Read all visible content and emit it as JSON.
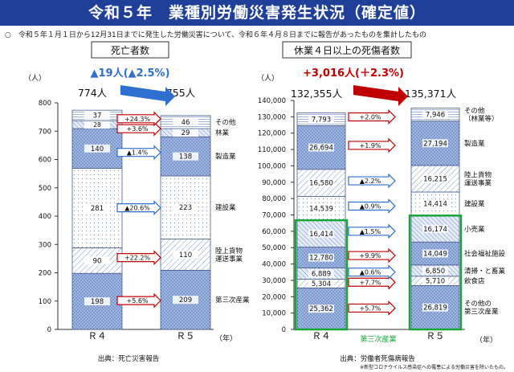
{
  "header": {
    "title": "令和５年　業種別労働災害発生状況（確定値）",
    "note": "○　令和５年１月１日から12月31日までに発生した労働災害について、令和６年４月８日までに報告があったものを集計したもの"
  },
  "colors": {
    "banner": "#1f3f99",
    "segment_pattern": "#6f8fc9",
    "arrow_blue": "#2f6fcf",
    "arrow_red": "#c00000",
    "tertiary_box": "#1aa53a"
  },
  "chart_data": [
    {
      "type": "bar",
      "stacked": true,
      "title": "死亡者数",
      "ylabel": "（人）",
      "xlabel": "（年）",
      "categories": [
        "Ｒ４",
        "Ｒ５"
      ],
      "ylim": [
        0,
        800
      ],
      "yticks": [
        0,
        100,
        200,
        300,
        400,
        500,
        600,
        700,
        800
      ],
      "grid": false,
      "totals": [
        "774人",
        "755人"
      ],
      "total_change": "▲19人(▲2.5%)",
      "series": [
        {
          "name": "第三次産業",
          "values": [
            198,
            209
          ],
          "labels": [
            "198",
            "209"
          ],
          "change": "+5.6%",
          "direction": "up"
        },
        {
          "name": "陸上貨物運送事業",
          "values": [
            90,
            110
          ],
          "labels": [
            "90",
            "110"
          ],
          "change": "+22.2%",
          "direction": "up"
        },
        {
          "name": "建設業",
          "values": [
            281,
            223
          ],
          "labels": [
            "281",
            "223"
          ],
          "change": "▲20.6%",
          "direction": "down"
        },
        {
          "name": "製造業",
          "values": [
            140,
            138
          ],
          "labels": [
            "140",
            "138"
          ],
          "change": "▲1.4%",
          "direction": "down"
        },
        {
          "name": "林業",
          "values": [
            28,
            29
          ],
          "labels": [
            "28",
            "29"
          ],
          "change": "+3.6%",
          "direction": "up"
        },
        {
          "name": "その他",
          "values": [
            37,
            46
          ],
          "labels": [
            "37",
            "46"
          ],
          "change": "+24.3%",
          "direction": "up"
        }
      ],
      "source": "出典：死亡災害報告"
    },
    {
      "type": "bar",
      "stacked": true,
      "title": "休業４日以上の死傷者数",
      "ylabel": "（人）",
      "xlabel": "（年）",
      "categories": [
        "Ｒ４",
        "Ｒ５"
      ],
      "ylim": [
        0,
        140000
      ],
      "yticks": [
        0,
        10000,
        20000,
        30000,
        40000,
        50000,
        60000,
        70000,
        80000,
        90000,
        100000,
        110000,
        120000,
        130000,
        140000
      ],
      "ytick_labels": [
        "0",
        "10,000",
        "20,000",
        "30,000",
        "40,000",
        "50,000",
        "60,000",
        "70,000",
        "80,000",
        "90,000",
        "100,000",
        "110,000",
        "120,000",
        "130,000",
        "140,000"
      ],
      "grid": false,
      "totals": [
        "132,355人",
        "135,371人"
      ],
      "total_change": "+3,016人(＋2.3%)",
      "series": [
        {
          "name": "その他の第三次産業",
          "values": [
            25362,
            26819
          ],
          "labels": [
            "25,362",
            "26,819"
          ],
          "change": "+5.7%",
          "direction": "up"
        },
        {
          "name": "飲食店",
          "values": [
            5304,
            5710
          ],
          "labels": [
            "5,304",
            "5,710"
          ],
          "change": "+7.7%",
          "direction": "up"
        },
        {
          "name": "清掃・と畜業",
          "values": [
            6889,
            6850
          ],
          "labels": [
            "6,889",
            "6,850"
          ],
          "change": "▲0.6%",
          "direction": "down"
        },
        {
          "name": "社会福祉施設",
          "values": [
            12780,
            14049
          ],
          "labels": [
            "12,780",
            "14,049"
          ],
          "change": "+9.9%",
          "direction": "up"
        },
        {
          "name": "小売業",
          "values": [
            16414,
            16174
          ],
          "labels": [
            "16,414",
            "16,174"
          ],
          "change": "▲1.5%",
          "direction": "down"
        },
        {
          "name": "建設業",
          "values": [
            14539,
            14414
          ],
          "labels": [
            "14,539",
            "14,414"
          ],
          "change": "▲0.9%",
          "direction": "down"
        },
        {
          "name": "陸上貨物運送事業",
          "values": [
            16580,
            16215
          ],
          "labels": [
            "16,580",
            "16,215"
          ],
          "change": "▲2.2%",
          "direction": "down"
        },
        {
          "name": "製造業",
          "values": [
            26694,
            27194
          ],
          "labels": [
            "26,694",
            "27,194"
          ],
          "change": "+1.9%",
          "direction": "up"
        },
        {
          "name": "その他（林業等）",
          "values": [
            7793,
            7946
          ],
          "labels": [
            "7,793",
            "7,946"
          ],
          "change": "+2.0%",
          "direction": "up"
        }
      ],
      "group_box": {
        "label": "第三次産業",
        "from_series": 0,
        "to_series": 4
      },
      "source": "出典：労働者死傷病報告",
      "footnote": "※新型コロナウイルス感染症への罹患による労働災害を除いたもの。"
    }
  ]
}
